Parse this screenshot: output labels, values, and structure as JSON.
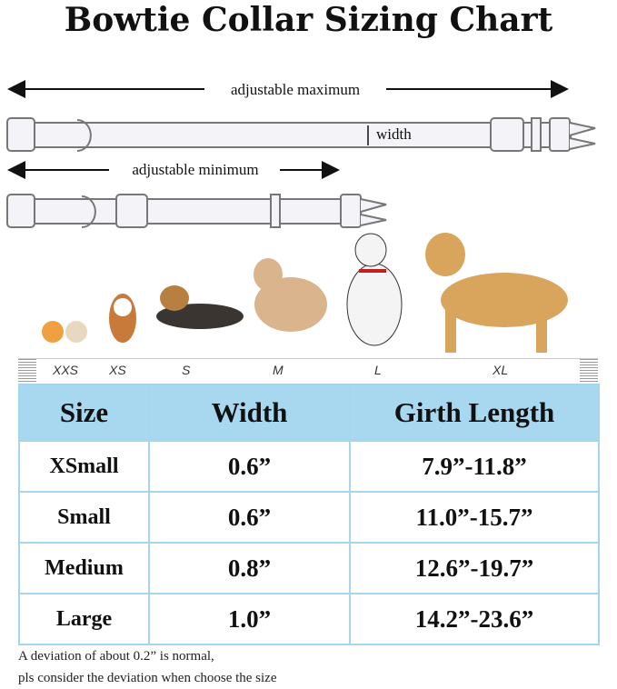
{
  "title": "Bowtie Collar Sizing Chart",
  "diagram": {
    "max_label": "adjustable maximum",
    "min_label": "adjustable minimum",
    "width_label": "width"
  },
  "ruler_sizes": [
    "XXS",
    "XS",
    "S",
    "M",
    "L",
    "XL"
  ],
  "table": {
    "headers": [
      "Size",
      "Width",
      "Girth Length"
    ],
    "rows": [
      [
        "XSmall",
        "0.6”",
        "7.9”-11.8”"
      ],
      [
        "Small",
        "0.6”",
        "11.0”-15.7”"
      ],
      [
        "Medium",
        "0.8”",
        "12.6”-19.7”"
      ],
      [
        "Large",
        "1.0”",
        "14.2”-23.6”"
      ]
    ]
  },
  "note": [
    "A deviation of about 0.2” is normal,",
    "pls consider the deviation when choose the size"
  ],
  "colors": {
    "header_bg": "#a8d8f0",
    "border": "#a6d6ee"
  }
}
